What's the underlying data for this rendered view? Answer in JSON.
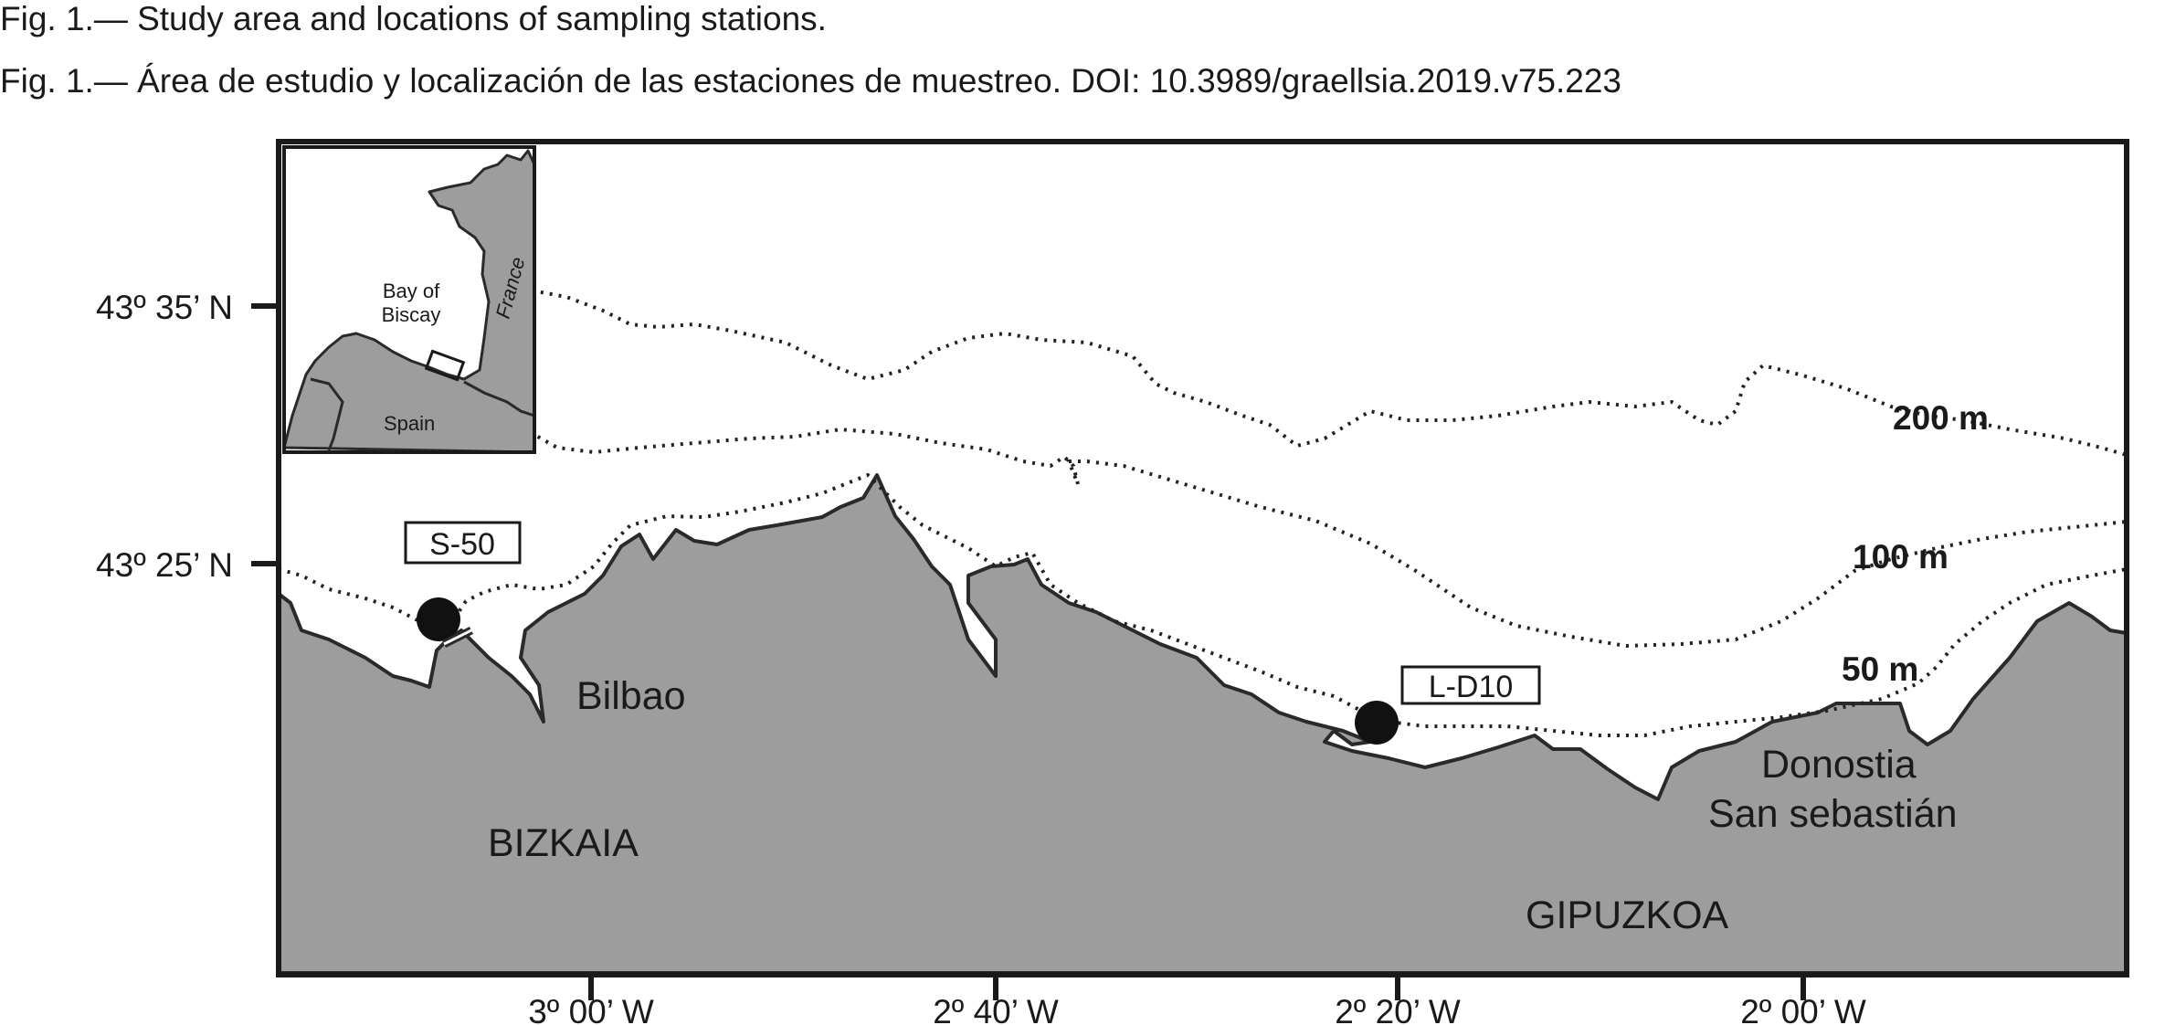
{
  "captions": {
    "english": "Fig. 1.— Study area and locations of sampling stations.",
    "spanish": "Fig. 1.— Área de estudio y localización de las estaciones de muestreo. DOI: 10.3989/graellsia.2019.v75.223"
  },
  "map": {
    "lat_ticks": [
      "43º 35’ N",
      "43º 25’ N"
    ],
    "lon_ticks": [
      "3º 00’ W",
      "2º 40’ W",
      "2º 20’ W",
      "2º 00’ W"
    ],
    "isobaths": [
      "200 m",
      "100 m",
      "50 m"
    ],
    "stations": [
      "S-50",
      "L-D10"
    ],
    "cities": [
      "Bilbao",
      "Donostia",
      "San sebastián"
    ],
    "provinces": [
      "BIZKAIA",
      "GIPUZKOA"
    ],
    "colors": {
      "land": "#9d9d9d",
      "frame": "#1a1a1a",
      "station": "#111111"
    }
  },
  "inset": {
    "sea_label_line1": "Bay of",
    "sea_label_line2": "Biscay",
    "country_spain": "Spain",
    "country_france": "France"
  }
}
